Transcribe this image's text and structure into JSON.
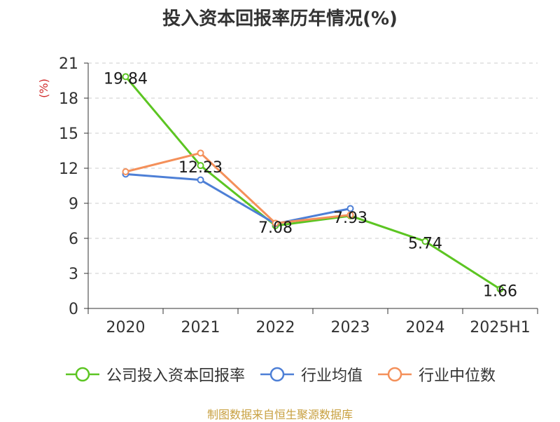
{
  "chart_data": {
    "type": "line",
    "title": "投入资本回报率历年情况(%)",
    "ylabel": "(%)",
    "xlabel": "",
    "categories": [
      "2020",
      "2021",
      "2022",
      "2023",
      "2024",
      "2025H1"
    ],
    "ylim": [
      0,
      21
    ],
    "yticks": [
      0,
      3,
      6,
      9,
      12,
      15,
      18,
      21
    ],
    "grid": true,
    "legend_position": "bottom",
    "series": [
      {
        "name": "公司投入资本回报率",
        "color": "#5cc522",
        "values": [
          19.84,
          12.23,
          7.08,
          7.93,
          5.74,
          1.66
        ],
        "labels": [
          "19.84",
          "12.23",
          "7.08",
          "7.93",
          "5.74",
          "1.66"
        ]
      },
      {
        "name": "行业均值",
        "color": "#4d7fd6",
        "values": [
          11.5,
          11.0,
          7.25,
          8.55,
          null,
          null
        ]
      },
      {
        "name": "行业中位数",
        "color": "#f4905a",
        "values": [
          11.7,
          13.3,
          7.3,
          8.0,
          null,
          null
        ]
      }
    ]
  },
  "footer": {
    "source": "制图数据来自恒生聚源数据库"
  }
}
